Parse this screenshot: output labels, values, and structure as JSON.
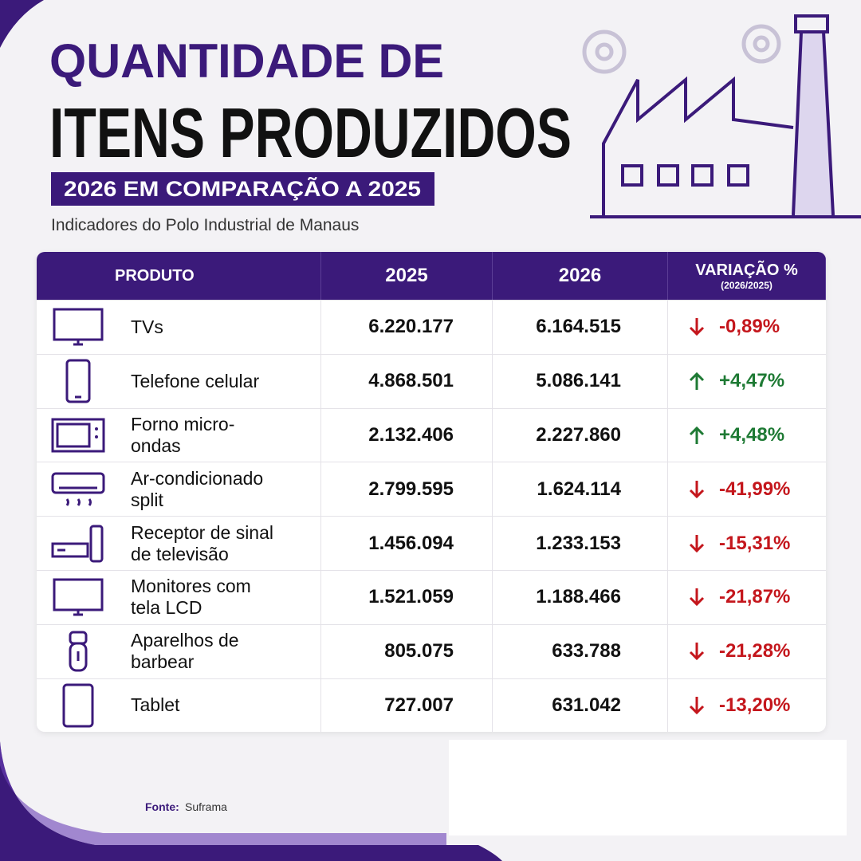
{
  "header": {
    "title_line1": "QUANTIDADE DE",
    "title_line2": "ITENS PRODUZIDOS",
    "subtitle": "2026 EM COMPARAÇÃO A 2025",
    "description": "Indicadores do Polo Industrial de Manaus"
  },
  "table": {
    "headers": [
      "PRODUTO",
      "2025",
      "2026",
      "VARIAÇÃO %"
    ],
    "header_note": "(2026/2025)",
    "rows": [
      [
        "TVs",
        "6.220.177",
        "6.164.515",
        "-0,89%"
      ],
      [
        "Telefone celular",
        "4.868.501",
        "5.086.141",
        "+4,47%"
      ],
      [
        "Forno micro-ondas",
        "2.132.406",
        "2.227.860",
        "+4,48%"
      ],
      [
        "Ar-condicionado split",
        "2.799.595",
        "1.624.114",
        "-41,99%"
      ],
      [
        "Receptor de sinal de televisão",
        "1.456.094",
        "1.233.153",
        "-15,31%"
      ],
      [
        "Monitores com tela LCD",
        "1.521.059",
        "1.188.466",
        "-21,87%"
      ],
      [
        "Aparelhos de barbear",
        "805.075",
        "633.788",
        "-21,28%"
      ],
      [
        "Tablet",
        "727.007",
        "631.042",
        "-13,20%"
      ]
    ]
  },
  "footer": {
    "source_label": "Fonte:",
    "source": "Suframa"
  }
}
